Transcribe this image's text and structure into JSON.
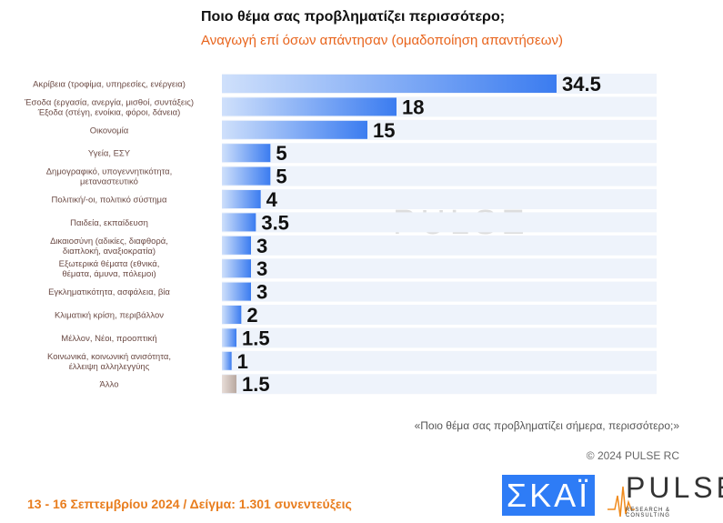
{
  "title": "Ποιο θέμα σας προβληματίζει περισσότερο;",
  "subtitle": "Αναγωγή επί όσων απάντησαν   (ομαδοποίηση απαντήσεων)",
  "question": "«Ποιο θέμα σας προβληματίζει σήμερα, περισσότερο;»",
  "copyright": "© 2024 PULSE RC",
  "footer": "13 - 16 Σεπτεμβρίου 2024  /  Δείγμα:  1.301 συνεντεύξεις",
  "logos": {
    "skai": "ΣΚΑΪ",
    "pulse": "PULSE",
    "pulse_sub": "RESEARCH & CONSULTING",
    "watermark": "PULSE",
    "watermark_sub": "RESEARCH & CONSULTING"
  },
  "colors": {
    "bar": "#3b7cf0",
    "bar_light": "#cfe0fb",
    "other": "#b8a8a0",
    "row_bg": "#eef3fb",
    "label": "#6b4a44"
  },
  "chart_data": {
    "type": "bar",
    "orientation": "horizontal",
    "categories": [
      [
        "Ακρίβεια (τροφίμα, υπηρεσίες, ενέργεια)"
      ],
      [
        "Έσοδα (εργασία, ανεργία, μισθοί, συντάξεις)",
        "Έξοδα (στέγη, ενοίκια, φόροι, δάνεια)"
      ],
      [
        "Οικονομία"
      ],
      [
        "Υγεία, ΕΣΥ"
      ],
      [
        "Δημογραφικό, υπογεννητικότητα,",
        "μεταναστευτικό"
      ],
      [
        "Πολιτική/-οι, πολιτικό σύστημα"
      ],
      [
        "Παιδεία, εκπαίδευση"
      ],
      [
        "Δικαιοσύνη (αδικίες, διαφθορά,",
        "διαπλοκή, αναξιοκρατία)"
      ],
      [
        "Εξωτερικά θέματα (εθνικά,",
        "θέματα, άμυνα, πόλεμοι)"
      ],
      [
        "Εγκληματικότητα, ασφάλεια, βία"
      ],
      [
        "Κλιματική κρίση, περιβάλλον"
      ],
      [
        "Μέλλον, Νέοι, προοπτική"
      ],
      [
        "Κοινωνικά, κοινωνική ανισότητα,",
        "έλλειψη αλληλεγγύης"
      ],
      [
        "Άλλο"
      ]
    ],
    "values": [
      34.5,
      18,
      15,
      5,
      5,
      4,
      3.5,
      3,
      3,
      3,
      2,
      1.5,
      1,
      1.5
    ],
    "value_labels": [
      "34.5",
      "18",
      "15",
      "5",
      "5",
      "4",
      "3.5",
      "3",
      "3",
      "3",
      "2",
      "1.5",
      "1",
      "1.5"
    ],
    "xlim": [
      0,
      45
    ]
  }
}
